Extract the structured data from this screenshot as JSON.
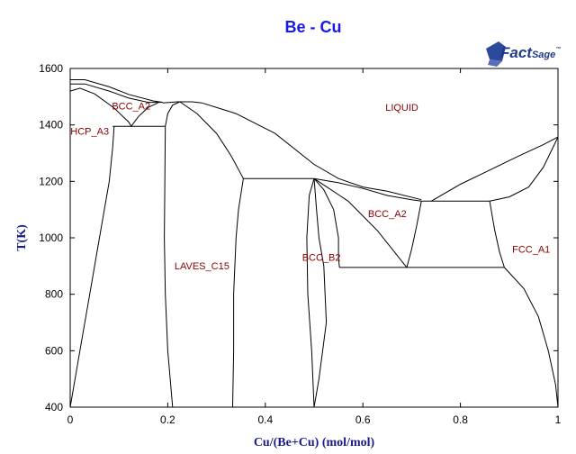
{
  "chart_data": {
    "type": "phase-diagram",
    "title": "Be - Cu",
    "xlabel": "Cu/(Be+Cu) (mol/mol)",
    "ylabel": "T(K)",
    "xlim": [
      0,
      1
    ],
    "ylim": [
      400,
      1600
    ],
    "xticks": [
      0,
      0.2,
      0.4,
      0.6,
      0.8,
      1
    ],
    "xtick_labels": [
      "0",
      "0.2",
      "0.4",
      "0.6",
      "0.8",
      "1"
    ],
    "yticks": [
      400,
      600,
      800,
      1000,
      1200,
      1400,
      1600
    ],
    "ytick_labels": [
      "400",
      "600",
      "800",
      "1000",
      "1200",
      "1400",
      "1600"
    ],
    "grid": false,
    "logo": {
      "brand": "FactSage",
      "part1": "Fact",
      "part2": "Sage",
      "mark": "™"
    },
    "phase_labels": [
      {
        "text": "LIQUID",
        "x": 0.68,
        "y": 1450
      },
      {
        "text": "BCC_A2",
        "x": 0.125,
        "y": 1455
      },
      {
        "text": "HCP_A3",
        "x": 0.04,
        "y": 1365
      },
      {
        "text": "LAVES_C15",
        "x": 0.27,
        "y": 888
      },
      {
        "text": "BCC_B2",
        "x": 0.515,
        "y": 918
      },
      {
        "text": "BCC_A2",
        "x": 0.65,
        "y": 1073
      },
      {
        "text": "FCC_A1",
        "x": 0.945,
        "y": 948
      }
    ],
    "boundaries": [
      {
        "id": "be-liquidus",
        "points": [
          [
            0,
            1560
          ],
          [
            0.03,
            1560
          ],
          [
            0.08,
            1535
          ],
          [
            0.12,
            1508
          ],
          [
            0.17,
            1485
          ],
          [
            0.19,
            1480
          ]
        ]
      },
      {
        "id": "bcc-be-rich-upper",
        "points": [
          [
            0,
            1545
          ],
          [
            0.03,
            1545
          ],
          [
            0.08,
            1520
          ],
          [
            0.12,
            1495
          ],
          [
            0.16,
            1480
          ],
          [
            0.19,
            1480
          ]
        ]
      },
      {
        "id": "bcc-be-rich-inner",
        "points": [
          [
            0,
            1520
          ],
          [
            0.02,
            1530
          ],
          [
            0.05,
            1510
          ],
          [
            0.09,
            1460
          ],
          [
            0.12,
            1410
          ],
          [
            0.125,
            1395
          ]
        ]
      },
      {
        "id": "bcc-be-rich-outer",
        "points": [
          [
            0.125,
            1395
          ],
          [
            0.14,
            1430
          ],
          [
            0.16,
            1462
          ],
          [
            0.18,
            1478
          ]
        ]
      },
      {
        "id": "hcp-solvus",
        "points": [
          [
            0,
            400
          ],
          [
            0.02,
            600
          ],
          [
            0.04,
            800
          ],
          [
            0.06,
            1000
          ],
          [
            0.08,
            1200
          ],
          [
            0.087,
            1320
          ],
          [
            0.09,
            1395
          ]
        ]
      },
      {
        "id": "eutectoid-1395",
        "points": [
          [
            0.087,
            1395
          ],
          [
            0.195,
            1395
          ]
        ]
      },
      {
        "id": "laves-left-upper",
        "points": [
          [
            0.195,
            1395
          ],
          [
            0.2,
            1440
          ],
          [
            0.21,
            1470
          ],
          [
            0.225,
            1482
          ]
        ]
      },
      {
        "id": "laves-left",
        "points": [
          [
            0.195,
            1395
          ],
          [
            0.193,
            1000
          ],
          [
            0.195,
            800
          ],
          [
            0.2,
            600
          ],
          [
            0.21,
            400
          ]
        ]
      },
      {
        "id": "laves-peak",
        "points": [
          [
            0.19,
            1478
          ],
          [
            0.22,
            1482
          ],
          [
            0.25,
            1482
          ],
          [
            0.27,
            1478
          ]
        ]
      },
      {
        "id": "laves-right-upper",
        "points": [
          [
            0.225,
            1482
          ],
          [
            0.26,
            1440
          ],
          [
            0.3,
            1370
          ],
          [
            0.33,
            1290
          ],
          [
            0.355,
            1210
          ]
        ]
      },
      {
        "id": "laves-right",
        "points": [
          [
            0.355,
            1210
          ],
          [
            0.345,
            1100
          ],
          [
            0.34,
            1000
          ],
          [
            0.335,
            800
          ],
          [
            0.335,
            600
          ],
          [
            0.333,
            400
          ]
        ]
      },
      {
        "id": "peritectic-1210",
        "points": [
          [
            0.355,
            1210
          ],
          [
            0.5,
            1210
          ]
        ]
      },
      {
        "id": "main-liquidus",
        "points": [
          [
            0.27,
            1478
          ],
          [
            0.34,
            1440
          ],
          [
            0.42,
            1370
          ],
          [
            0.5,
            1260
          ],
          [
            0.55,
            1210
          ],
          [
            0.6,
            1180
          ],
          [
            0.65,
            1165
          ],
          [
            0.72,
            1135
          ]
        ]
      },
      {
        "id": "b2-left",
        "points": [
          [
            0.5,
            1210
          ],
          [
            0.49,
            1150
          ],
          [
            0.485,
            1000
          ],
          [
            0.487,
            800
          ],
          [
            0.495,
            600
          ],
          [
            0.5,
            400
          ]
        ]
      },
      {
        "id": "b2-right-upper",
        "points": [
          [
            0.5,
            1210
          ],
          [
            0.52,
            1170
          ],
          [
            0.54,
            1100
          ],
          [
            0.55,
            1000
          ],
          [
            0.55,
            930
          ],
          [
            0.552,
            895
          ]
        ]
      },
      {
        "id": "b2-right-lower",
        "points": [
          [
            0.5,
            1210
          ],
          [
            0.505,
            1100
          ],
          [
            0.51,
            1000
          ],
          [
            0.52,
            900
          ],
          [
            0.525,
            700
          ],
          [
            0.51,
            500
          ],
          [
            0.5,
            400
          ]
        ]
      },
      {
        "id": "bcc-liquidus",
        "points": [
          [
            0.5,
            1210
          ],
          [
            0.55,
            1195
          ],
          [
            0.6,
            1175
          ],
          [
            0.65,
            1150
          ],
          [
            0.7,
            1135
          ],
          [
            0.72,
            1130
          ]
        ]
      },
      {
        "id": "bcc-a2-left",
        "points": [
          [
            0.5,
            1210
          ],
          [
            0.57,
            1130
          ],
          [
            0.63,
            1025
          ],
          [
            0.69,
            895
          ]
        ]
      },
      {
        "id": "bcc-a2-right",
        "points": [
          [
            0.72,
            1130
          ],
          [
            0.71,
            1040
          ],
          [
            0.7,
            960
          ],
          [
            0.69,
            895
          ]
        ]
      },
      {
        "id": "eutectoid-895",
        "points": [
          [
            0.552,
            895
          ],
          [
            0.89,
            895
          ]
        ]
      },
      {
        "id": "peritectic-1130",
        "points": [
          [
            0.72,
            1130
          ],
          [
            0.86,
            1130
          ]
        ]
      },
      {
        "id": "fcc-solidus",
        "points": [
          [
            0.86,
            1130
          ],
          [
            0.87,
            1030
          ],
          [
            0.88,
            950
          ],
          [
            0.89,
            895
          ]
        ]
      },
      {
        "id": "cu-liquidus",
        "points": [
          [
            0.74,
            1130
          ],
          [
            0.8,
            1190
          ],
          [
            0.86,
            1240
          ],
          [
            0.92,
            1290
          ],
          [
            0.97,
            1330
          ],
          [
            1.0,
            1357
          ]
        ]
      },
      {
        "id": "cu-solidus",
        "points": [
          [
            0.86,
            1130
          ],
          [
            0.9,
            1145
          ],
          [
            0.94,
            1180
          ],
          [
            0.97,
            1250
          ],
          [
            1.0,
            1357
          ]
        ]
      },
      {
        "id": "fcc-solvus",
        "points": [
          [
            0.89,
            895
          ],
          [
            0.93,
            820
          ],
          [
            0.96,
            720
          ],
          [
            0.98,
            600
          ],
          [
            0.995,
            480
          ],
          [
            1.0,
            400
          ]
        ]
      }
    ]
  }
}
